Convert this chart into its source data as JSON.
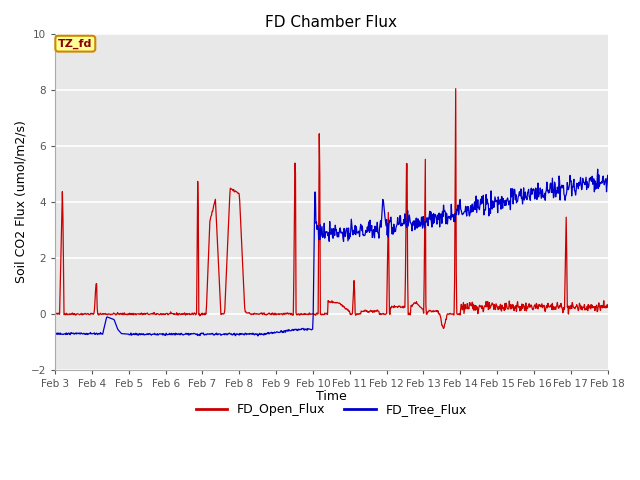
{
  "title": "FD Chamber Flux",
  "xlabel": "Time",
  "ylabel": "Soil CO2 Flux (umol/m2/s)",
  "ylim": [
    -2,
    10
  ],
  "xlim_days": [
    3,
    18
  ],
  "fig_facecolor": "#ffffff",
  "plot_bg_color": "#e8e8e8",
  "grid_color": "#ffffff",
  "annotation_text": "TZ_fd",
  "annotation_facecolor": "#ffff99",
  "annotation_edgecolor": "#cc8800",
  "annotation_textcolor": "#8b0000",
  "line1_color": "#cc0000",
  "line2_color": "#0000cc",
  "line1_label": "FD_Open_Flux",
  "line2_label": "FD_Tree_Flux",
  "title_fontsize": 11,
  "axis_label_fontsize": 9,
  "tick_fontsize": 7.5,
  "linewidth": 0.9
}
